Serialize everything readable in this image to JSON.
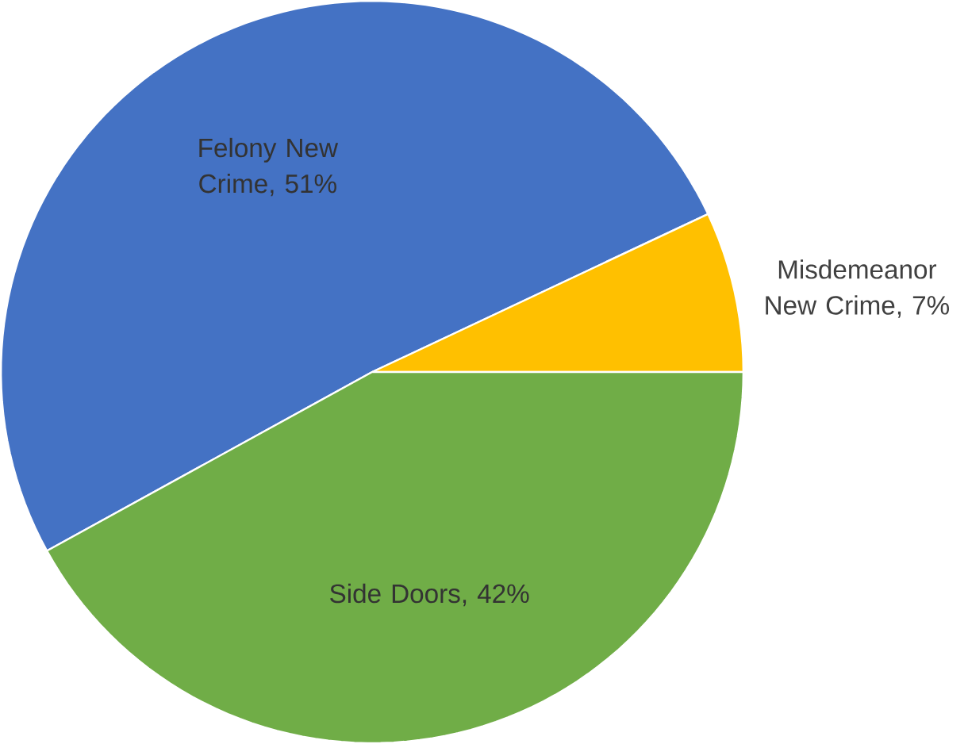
{
  "chart_data": {
    "type": "pie",
    "categories": [
      "Felony New Crime",
      "Misdemeanor New Crime",
      "Side Doors"
    ],
    "values": [
      51,
      7,
      42
    ],
    "colors": [
      "#4472c4",
      "#ffc000",
      "#70ad47"
    ],
    "value_labels": [
      ", 51%",
      ", 7%",
      ", 42%"
    ]
  }
}
